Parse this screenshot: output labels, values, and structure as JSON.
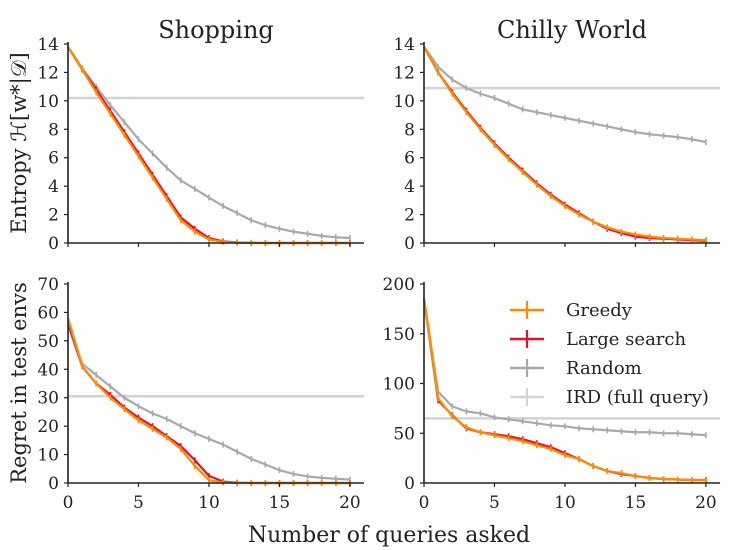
{
  "figure": {
    "xlabel": "Number of queries asked"
  },
  "chart_data": [
    {
      "type": "line",
      "title": "Shopping",
      "xlabel": "",
      "ylabel": "Entropy ℋ[w*|𝒟]",
      "xlim": [
        0,
        21
      ],
      "ylim": [
        0,
        14
      ],
      "xticks": [
        0,
        5,
        10,
        15,
        20
      ],
      "yticks": [
        0,
        2,
        4,
        6,
        8,
        10,
        12,
        14
      ],
      "show_xticklabels": false,
      "x": [
        0,
        1,
        2,
        3,
        4,
        5,
        6,
        7,
        8,
        9,
        10,
        11,
        12,
        13,
        14,
        15,
        16,
        17,
        18,
        19,
        20
      ],
      "series": [
        {
          "name": "Greedy",
          "values": [
            13.8,
            12.2,
            10.6,
            9.1,
            7.6,
            6.1,
            4.6,
            3.1,
            1.6,
            0.8,
            0.25,
            0.08,
            0.02,
            0,
            0,
            0,
            0,
            0,
            0,
            0,
            0
          ]
        },
        {
          "name": "Large search",
          "values": [
            13.8,
            12.2,
            10.8,
            9.3,
            7.8,
            6.3,
            4.8,
            3.3,
            1.8,
            1.0,
            0.35,
            0.12,
            0.04,
            0.01,
            0,
            0,
            0,
            0,
            0,
            0,
            0
          ]
        },
        {
          "name": "Random",
          "values": [
            13.8,
            12.3,
            11.0,
            9.7,
            8.5,
            7.3,
            6.3,
            5.3,
            4.4,
            3.8,
            3.2,
            2.6,
            2.1,
            1.6,
            1.25,
            1.0,
            0.8,
            0.65,
            0.5,
            0.4,
            0.35
          ]
        },
        {
          "name": "IRD (full query)",
          "hline": 10.2
        }
      ]
    },
    {
      "type": "line",
      "title": "Chilly World",
      "xlabel": "",
      "ylabel": "",
      "xlim": [
        0,
        21
      ],
      "ylim": [
        0,
        14
      ],
      "xticks": [
        0,
        5,
        10,
        15,
        20
      ],
      "yticks": [
        0,
        2,
        4,
        6,
        8,
        10,
        12,
        14
      ],
      "show_xticklabels": false,
      "x": [
        0,
        1,
        2,
        3,
        4,
        5,
        6,
        7,
        8,
        9,
        10,
        11,
        12,
        13,
        14,
        15,
        16,
        17,
        18,
        19,
        20
      ],
      "series": [
        {
          "name": "Greedy",
          "values": [
            13.8,
            12.0,
            10.5,
            9.2,
            8.0,
            6.9,
            5.9,
            5.0,
            4.1,
            3.3,
            2.6,
            2.0,
            1.5,
            1.1,
            0.8,
            0.6,
            0.45,
            0.35,
            0.3,
            0.25,
            0.2
          ]
        },
        {
          "name": "Large search",
          "values": [
            13.8,
            12.0,
            10.6,
            9.3,
            8.1,
            7.0,
            6.0,
            5.1,
            4.2,
            3.4,
            2.7,
            2.1,
            1.5,
            1.0,
            0.7,
            0.45,
            0.35,
            0.3,
            0.25,
            0.2,
            0.15
          ]
        },
        {
          "name": "Random",
          "values": [
            13.8,
            12.4,
            11.5,
            10.9,
            10.5,
            10.2,
            9.8,
            9.4,
            9.2,
            9.0,
            8.8,
            8.6,
            8.4,
            8.2,
            8.0,
            7.8,
            7.65,
            7.55,
            7.45,
            7.3,
            7.1
          ]
        },
        {
          "name": "IRD (full query)",
          "hline": 10.9
        }
      ]
    },
    {
      "type": "line",
      "title": "",
      "xlabel": "",
      "ylabel": "Regret in test envs",
      "xlim": [
        0,
        21
      ],
      "ylim": [
        0,
        70
      ],
      "xticks": [
        0,
        5,
        10,
        15,
        20
      ],
      "yticks": [
        0,
        10,
        20,
        30,
        40,
        50,
        60,
        70
      ],
      "show_xticklabels": true,
      "x": [
        0,
        1,
        2,
        3,
        4,
        5,
        6,
        7,
        8,
        9,
        10,
        11,
        12,
        13,
        14,
        15,
        16,
        17,
        18,
        19,
        20
      ],
      "series": [
        {
          "name": "Greedy",
          "values": [
            58,
            41,
            35,
            30,
            26,
            22,
            19,
            16,
            12,
            6,
            1,
            0.2,
            0,
            0,
            0,
            0,
            0,
            0,
            0,
            0,
            0
          ]
        },
        {
          "name": "Large search",
          "values": [
            56,
            41,
            35,
            31,
            26.5,
            23,
            20,
            16.5,
            13,
            8,
            2.5,
            0.5,
            0.1,
            0,
            0,
            0,
            0,
            0,
            0,
            0,
            0
          ]
        },
        {
          "name": "Random",
          "values": [
            57,
            42,
            38,
            34,
            30,
            27,
            24.5,
            22.5,
            20,
            17.5,
            15.5,
            13.5,
            11,
            8.5,
            6.5,
            4.5,
            3.2,
            2.3,
            1.8,
            1.5,
            1.2
          ]
        },
        {
          "name": "IRD (full query)",
          "hline": 30.5
        }
      ]
    },
    {
      "type": "line",
      "title": "",
      "xlabel": "",
      "ylabel": "",
      "xlim": [
        0,
        21
      ],
      "ylim": [
        0,
        200
      ],
      "xticks": [
        0,
        5,
        10,
        15,
        20
      ],
      "yticks": [
        0,
        50,
        100,
        150,
        200
      ],
      "show_xticklabels": true,
      "legend": "upper-right",
      "x": [
        0,
        1,
        2,
        3,
        4,
        5,
        6,
        7,
        8,
        9,
        10,
        11,
        12,
        13,
        14,
        15,
        16,
        17,
        18,
        19,
        20
      ],
      "series": [
        {
          "name": "Greedy",
          "values": [
            185,
            85,
            67,
            56,
            51,
            48,
            45,
            42,
            38,
            34,
            28,
            24,
            17,
            12,
            10,
            7,
            5,
            4,
            3.5,
            3,
            3
          ]
        },
        {
          "name": "Large search",
          "values": [
            185,
            83,
            68,
            55,
            51,
            49,
            47,
            44,
            40,
            36,
            30,
            24,
            17,
            12,
            9,
            7,
            5,
            4,
            3.5,
            3,
            3
          ]
        },
        {
          "name": "Random",
          "values": [
            185,
            92,
            77,
            72,
            70,
            66,
            64,
            62,
            60,
            58,
            57,
            55,
            54,
            53,
            52,
            51,
            51,
            50,
            50,
            49,
            48
          ]
        },
        {
          "name": "IRD (full query)",
          "hline": 65
        }
      ]
    }
  ],
  "colors": {
    "Greedy": "#ff8c00",
    "Large search": "#dc1434",
    "Random": "#a9a9a9",
    "IRD (full query)": "#d3d3d3",
    "axis": "#222222"
  }
}
